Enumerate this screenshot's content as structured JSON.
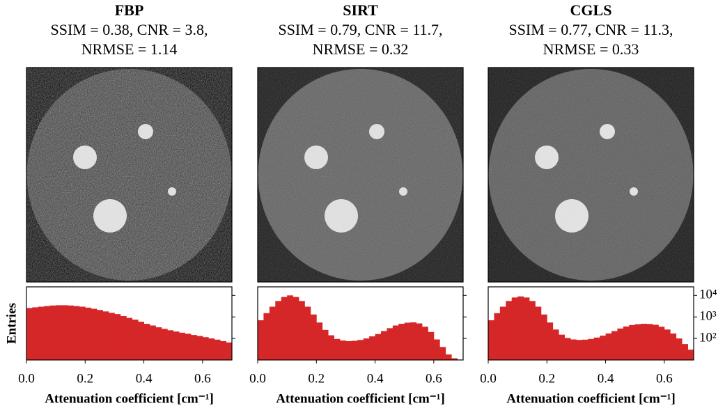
{
  "chart_data": [
    {
      "type": "histogram",
      "title": "FBP",
      "subtitle": [
        "SSIM = 0.38, CNR = 3.8,",
        "NRMSE = 1.14"
      ],
      "color": "#d62728",
      "log_y": true,
      "ylabel": "Entries",
      "xlabel": "Attenuation coefficient [cm⁻¹]",
      "xlim": [
        0,
        0.7
      ],
      "xticks": [
        {
          "value": 0,
          "label": "0.0"
        },
        0.2,
        0.4,
        0.6
      ],
      "ylim": [
        10,
        25000
      ],
      "yticks": [
        100,
        1000,
        10000
      ],
      "bins": [
        0,
        0.02,
        0.04,
        0.06,
        0.08,
        0.1,
        0.12,
        0.14,
        0.16,
        0.18,
        0.2,
        0.22,
        0.24,
        0.26,
        0.28,
        0.3,
        0.32,
        0.34,
        0.36,
        0.38,
        0.4,
        0.42,
        0.44,
        0.46,
        0.48,
        0.5,
        0.52,
        0.54,
        0.56,
        0.58,
        0.6,
        0.62,
        0.64,
        0.66,
        0.68,
        0.7
      ],
      "values": [
        2600,
        2800,
        3000,
        3200,
        3400,
        3500,
        3500,
        3400,
        3200,
        3000,
        2700,
        2400,
        2100,
        1800,
        1550,
        1350,
        1100,
        900,
        750,
        600,
        480,
        400,
        330,
        280,
        240,
        210,
        185,
        165,
        145,
        130,
        115,
        100,
        88,
        75,
        65
      ]
    },
    {
      "type": "histogram",
      "title": "SIRT",
      "subtitle": [
        "SSIM = 0.79, CNR = 11.7,",
        "NRMSE = 0.32"
      ],
      "color": "#d62728",
      "log_y": true,
      "xlabel": "Attenuation coefficient [cm⁻¹]",
      "xlim": [
        0,
        0.7
      ],
      "xticks": [
        {
          "value": 0,
          "label": "0.0"
        },
        0.2,
        0.4,
        0.6
      ],
      "ylim": [
        10,
        25000
      ],
      "yticks": [
        100,
        1000,
        10000
      ],
      "bins": [
        0,
        0.02,
        0.04,
        0.06,
        0.08,
        0.1,
        0.12,
        0.14,
        0.16,
        0.18,
        0.2,
        0.22,
        0.24,
        0.26,
        0.28,
        0.3,
        0.32,
        0.34,
        0.36,
        0.38,
        0.4,
        0.42,
        0.44,
        0.46,
        0.48,
        0.5,
        0.52,
        0.54,
        0.56,
        0.58,
        0.6,
        0.62,
        0.64,
        0.66,
        0.68
      ],
      "values": [
        700,
        1500,
        3000,
        5500,
        8500,
        10000,
        8500,
        5500,
        3000,
        1300,
        550,
        250,
        140,
        95,
        80,
        75,
        78,
        85,
        100,
        125,
        160,
        220,
        300,
        400,
        480,
        540,
        560,
        500,
        350,
        200,
        90,
        40,
        18,
        12
      ]
    },
    {
      "type": "histogram",
      "title": "CGLS",
      "subtitle": [
        "SSIM = 0.77, CNR = 11.3,",
        "NRMSE = 0.33"
      ],
      "color": "#d62728",
      "log_y": true,
      "xlabel": "Attenuation coefficient [cm⁻¹]",
      "xlim": [
        0,
        0.7
      ],
      "xticks": [
        {
          "value": 0,
          "label": "0.0"
        },
        0.2,
        0.4,
        0.6
      ],
      "ylim": [
        10,
        25000
      ],
      "yticks": [
        {
          "value": 100,
          "label": "10²"
        },
        {
          "value": 1000,
          "label": "10³"
        },
        {
          "value": 10000,
          "label": "10⁴"
        }
      ],
      "bins": [
        0,
        0.02,
        0.04,
        0.06,
        0.08,
        0.1,
        0.12,
        0.14,
        0.16,
        0.18,
        0.2,
        0.22,
        0.24,
        0.26,
        0.28,
        0.3,
        0.32,
        0.34,
        0.36,
        0.38,
        0.4,
        0.42,
        0.44,
        0.46,
        0.48,
        0.5,
        0.52,
        0.54,
        0.56,
        0.58,
        0.6,
        0.62,
        0.64,
        0.66,
        0.68,
        0.7
      ],
      "values": [
        700,
        1500,
        3000,
        5500,
        8000,
        9000,
        8000,
        5500,
        3000,
        1300,
        550,
        260,
        150,
        105,
        90,
        85,
        88,
        95,
        110,
        135,
        170,
        220,
        290,
        360,
        420,
        460,
        480,
        470,
        430,
        350,
        260,
        170,
        100,
        55,
        30
      ]
    }
  ]
}
